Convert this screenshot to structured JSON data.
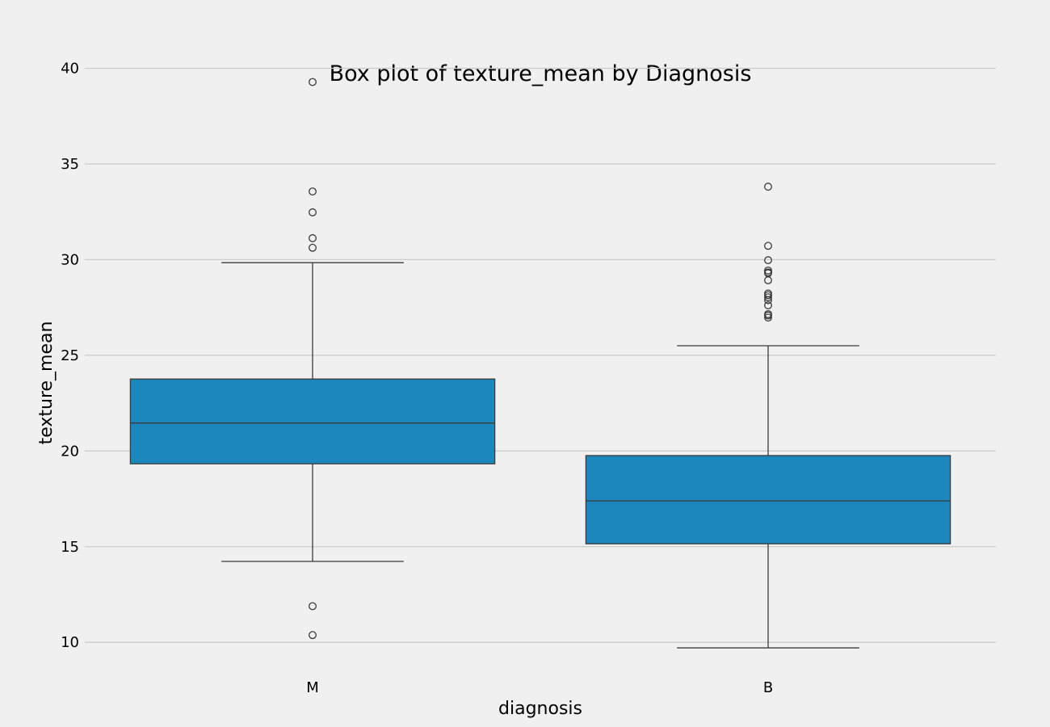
{
  "chart_data": {
    "type": "box",
    "title": "Box plot of texture_mean by Diagnosis",
    "xlabel": "diagnosis",
    "ylabel": "texture_mean",
    "ylim": [
      8.7,
      42.3
    ],
    "yticks": [
      10,
      15,
      20,
      25,
      30,
      35,
      40
    ],
    "grid": true,
    "box_color": "#1c87bc",
    "categories": [
      "M",
      "B"
    ],
    "series": [
      {
        "category": "M",
        "whisker_low": 14.23,
        "q1": 19.33,
        "median": 21.46,
        "q3": 23.76,
        "whisker_high": 29.84,
        "outliers": [
          39.28,
          33.56,
          32.47,
          31.12,
          30.62,
          11.89,
          10.38
        ]
      },
      {
        "category": "B",
        "whisker_low": 9.71,
        "q1": 15.15,
        "median": 17.39,
        "q3": 19.76,
        "whisker_high": 25.5,
        "outliers": [
          33.81,
          30.72,
          29.97,
          29.43,
          29.33,
          29.29,
          28.92,
          28.23,
          28.14,
          28.03,
          27.88,
          27.61,
          27.15,
          27.08,
          26.97
        ]
      }
    ]
  }
}
